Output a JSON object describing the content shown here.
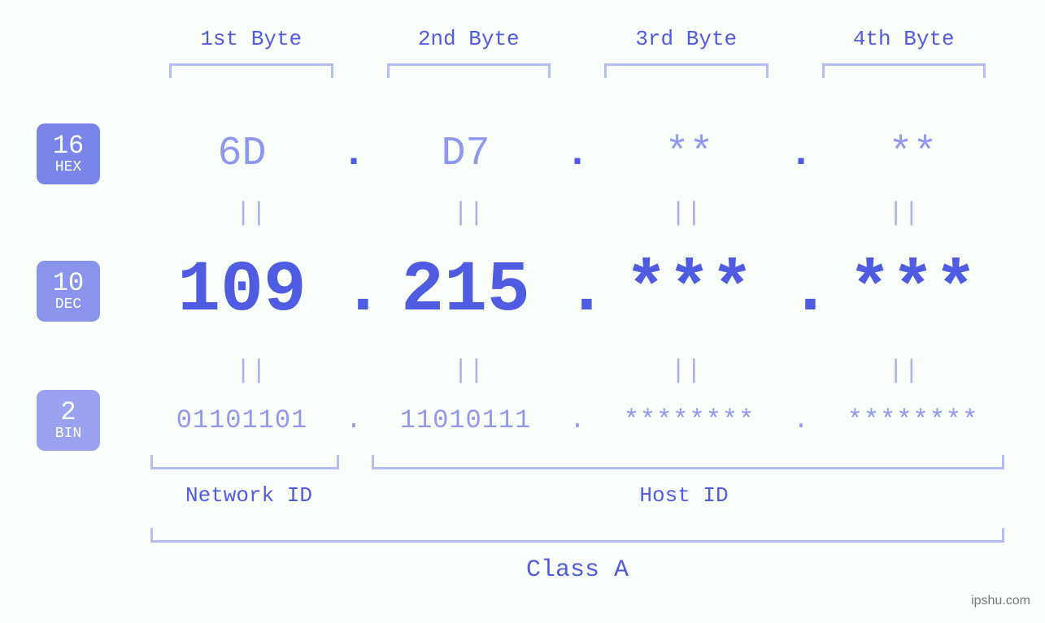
{
  "colors": {
    "background": "#fbfffc",
    "text_primary": "#4f5be0",
    "text_secondary": "#8f98ee",
    "bracket": "#b4bcf4",
    "badge_hex": "#7a85ea",
    "badge_dec": "#8b94ed",
    "badge_bin": "#9ba3f0",
    "equals": "#aab2f1",
    "watermark": "#777777"
  },
  "font": {
    "family": "monospace",
    "byte_label_size": 26,
    "hex_size": 50,
    "dec_size": 88,
    "bin_size": 32,
    "badge_num_size": 32,
    "badge_txt_size": 18,
    "bottom_label_size": 26,
    "class_label_size": 30
  },
  "byte_headers": [
    "1st Byte",
    "2nd Byte",
    "3rd Byte",
    "4th Byte"
  ],
  "badges": {
    "hex": {
      "num": "16",
      "txt": "HEX",
      "bg": "#7a85ea"
    },
    "dec": {
      "num": "10",
      "txt": "DEC",
      "bg": "#8b94ed"
    },
    "bin": {
      "num": "2",
      "txt": "BIN",
      "bg": "#9ba3f0"
    }
  },
  "values": {
    "hex": [
      "6D",
      "D7",
      "**",
      "**"
    ],
    "dec": [
      "109",
      "215",
      "***",
      "***"
    ],
    "bin": [
      "01101101",
      "11010111",
      "********",
      "********"
    ]
  },
  "separator": ".",
  "equals_glyph": "||",
  "bottom": {
    "network_label": "Network ID",
    "host_label": "Host ID",
    "class_label": "Class A"
  },
  "watermark": "ipshu.com"
}
